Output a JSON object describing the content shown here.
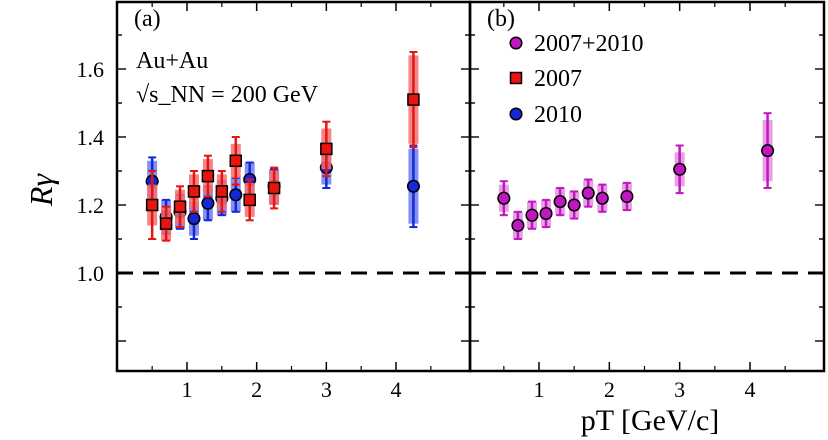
{
  "chart_data": [
    {
      "type": "scatter",
      "panel_label": "(a)",
      "system": "Au+Au",
      "energy_label": "√s_NN = 200 GeV",
      "ylabel": "Rγ",
      "xlabel": "pT [GeV/c]",
      "xlim": [
        0.0,
        4.9
      ],
      "ylim": [
        0.7,
        1.78
      ],
      "reference_line": 1.0,
      "x_ticks": [
        1,
        2,
        3,
        4
      ],
      "y_ticks": [
        1.0,
        1.2,
        1.4,
        1.6
      ],
      "y_tick_labels": [
        "1.0",
        "1.2",
        "1.4",
        "1.6"
      ],
      "series": [
        {
          "name": "2007",
          "marker": "square",
          "color": "#e8140f",
          "sys_color": "#f47070",
          "x": [
            0.5,
            0.7,
            0.9,
            1.1,
            1.3,
            1.5,
            1.7,
            1.9,
            2.25,
            3.0,
            4.25
          ],
          "y": [
            1.2,
            1.145,
            1.195,
            1.24,
            1.285,
            1.24,
            1.33,
            1.215,
            1.25,
            1.365,
            1.51
          ],
          "stat_err": [
            0.1,
            0.05,
            0.06,
            0.06,
            0.06,
            0.06,
            0.07,
            0.06,
            0.06,
            0.08,
            0.14
          ],
          "sys_err": [
            0.06,
            0.05,
            0.05,
            0.05,
            0.05,
            0.05,
            0.05,
            0.05,
            0.05,
            0.06,
            0.13
          ]
        },
        {
          "name": "2010",
          "marker": "circle",
          "color": "#1527d8",
          "sys_color": "#6f7cf0",
          "x": [
            0.5,
            0.7,
            0.9,
            1.1,
            1.3,
            1.5,
            1.7,
            1.9,
            2.25,
            3.0,
            4.25
          ],
          "y": [
            1.27,
            1.165,
            1.18,
            1.16,
            1.205,
            1.22,
            1.23,
            1.275,
            1.255,
            1.31,
            1.255
          ],
          "stat_err": [
            0.07,
            0.05,
            0.05,
            0.06,
            0.05,
            0.05,
            0.05,
            0.05,
            0.05,
            0.06,
            0.12
          ],
          "sys_err": [
            0.06,
            0.05,
            0.05,
            0.05,
            0.05,
            0.05,
            0.05,
            0.05,
            0.05,
            0.05,
            0.11
          ]
        }
      ]
    },
    {
      "type": "scatter",
      "panel_label": "(b)",
      "xlim": [
        0.0,
        4.9
      ],
      "ylim": [
        0.7,
        1.78
      ],
      "reference_line": 1.0,
      "x_ticks": [
        1,
        2,
        3,
        4
      ],
      "series": [
        {
          "name": "2007+2010",
          "marker": "circle",
          "color": "#c017c0",
          "sys_color": "#e48fe0",
          "x": [
            0.5,
            0.7,
            0.9,
            1.1,
            1.3,
            1.5,
            1.7,
            1.9,
            2.25,
            3.0,
            4.25
          ],
          "y": [
            1.22,
            1.14,
            1.17,
            1.175,
            1.21,
            1.2,
            1.235,
            1.22,
            1.225,
            1.305,
            1.36
          ],
          "stat_err": [
            0.05,
            0.04,
            0.04,
            0.04,
            0.04,
            0.04,
            0.04,
            0.04,
            0.04,
            0.07,
            0.11
          ],
          "sys_err": [
            0.04,
            0.04,
            0.04,
            0.04,
            0.04,
            0.04,
            0.04,
            0.04,
            0.04,
            0.05,
            0.09
          ]
        }
      ]
    }
  ]
}
